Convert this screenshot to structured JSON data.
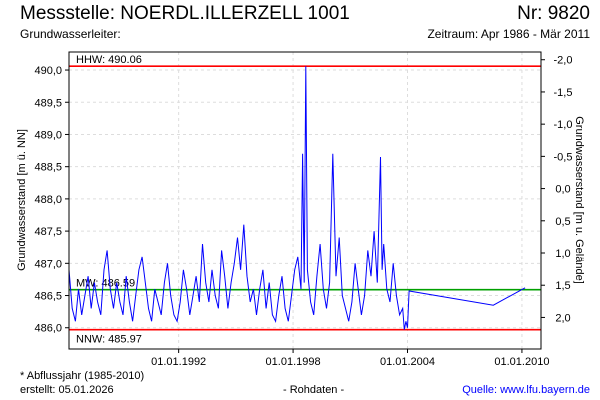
{
  "header": {
    "title": "Messstelle: NOERDL.ILLERZELL 1001",
    "nr": "Nr: 9820",
    "subtitle": "Grundwasserleiter:",
    "period": "Zeitraum: Apr 1986 - Mär 2011"
  },
  "footer": {
    "note": "* Abflussjahr (1985-2010)",
    "created": "erstellt:  05.01.2026",
    "raw": "- Rohdaten -",
    "source": "Quelle: www.lfu.bayern.de"
  },
  "chart_data": {
    "type": "line",
    "ylabel": "Grundwasserstand [m ü. NN]",
    "y2label": "Grundwasserstand [m u. Gelände]",
    "xlim": [
      "1986-04",
      "2011-01"
    ],
    "ylim": [
      485.67,
      490.28
    ],
    "yticks": [
      "486,0",
      "486,5",
      "487,0",
      "487,5",
      "488,0",
      "488,5",
      "489,0",
      "489,5",
      "490,0"
    ],
    "y2ticks": [
      "-2,0",
      "-1,5",
      "-1,0",
      "-0,5",
      "0,0",
      "0,5",
      "1,0",
      "1,5",
      "2,0"
    ],
    "xticks": [
      "01.01.1992",
      "01.01.1998",
      "01.01.2004",
      "01.01.2010"
    ],
    "grid": true,
    "colors": {
      "series": "#0000ff",
      "hhw": "#ff0000",
      "nnw": "#ff0000",
      "mw": "#00a000"
    },
    "reference_lines": [
      {
        "label": "HHW: 490.06",
        "value": 490.06,
        "color": "#ff0000"
      },
      {
        "label": "MW: 486.59",
        "value": 486.59,
        "color": "#00a000"
      },
      {
        "label": "NNW: 485.97",
        "value": 485.97,
        "color": "#ff0000"
      }
    ],
    "series": [
      {
        "points": [
          [
            "1986-04",
            486.9
          ],
          [
            "1986-06",
            486.3
          ],
          [
            "1986-08",
            486.1
          ],
          [
            "1986-10",
            486.6
          ],
          [
            "1986-12",
            486.2
          ],
          [
            "1987-02",
            486.5
          ],
          [
            "1987-04",
            486.8
          ],
          [
            "1987-06",
            486.3
          ],
          [
            "1987-08",
            486.7
          ],
          [
            "1987-10",
            486.4
          ],
          [
            "1987-12",
            486.2
          ],
          [
            "1988-02",
            486.9
          ],
          [
            "1988-04",
            487.2
          ],
          [
            "1988-06",
            486.6
          ],
          [
            "1988-08",
            486.3
          ],
          [
            "1988-10",
            486.7
          ],
          [
            "1988-12",
            486.4
          ],
          [
            "1989-02",
            486.2
          ],
          [
            "1989-04",
            486.8
          ],
          [
            "1989-06",
            486.4
          ],
          [
            "1989-08",
            486.1
          ],
          [
            "1989-10",
            486.5
          ],
          [
            "1989-12",
            486.9
          ],
          [
            "1990-02",
            487.1
          ],
          [
            "1990-04",
            486.7
          ],
          [
            "1990-06",
            486.3
          ],
          [
            "1990-08",
            486.1
          ],
          [
            "1990-10",
            486.6
          ],
          [
            "1990-12",
            486.4
          ],
          [
            "1991-02",
            486.2
          ],
          [
            "1991-04",
            486.7
          ],
          [
            "1991-06",
            487.0
          ],
          [
            "1991-08",
            486.5
          ],
          [
            "1991-10",
            486.2
          ],
          [
            "1991-12",
            486.1
          ],
          [
            "1992-02",
            486.4
          ],
          [
            "1992-04",
            486.9
          ],
          [
            "1992-06",
            486.6
          ],
          [
            "1992-08",
            486.2
          ],
          [
            "1992-10",
            486.5
          ],
          [
            "1992-12",
            486.8
          ],
          [
            "1993-02",
            486.4
          ],
          [
            "1993-04",
            487.3
          ],
          [
            "1993-06",
            486.7
          ],
          [
            "1993-08",
            486.4
          ],
          [
            "1993-10",
            486.9
          ],
          [
            "1993-12",
            486.5
          ],
          [
            "1994-02",
            486.3
          ],
          [
            "1994-04",
            487.2
          ],
          [
            "1994-06",
            486.8
          ],
          [
            "1994-08",
            486.3
          ],
          [
            "1994-10",
            486.7
          ],
          [
            "1994-12",
            487.0
          ],
          [
            "1995-02",
            487.4
          ],
          [
            "1995-04",
            486.9
          ],
          [
            "1995-06",
            487.6
          ],
          [
            "1995-08",
            486.8
          ],
          [
            "1995-10",
            486.4
          ],
          [
            "1995-12",
            486.6
          ],
          [
            "1996-02",
            486.2
          ],
          [
            "1996-04",
            486.6
          ],
          [
            "1996-06",
            486.9
          ],
          [
            "1996-08",
            486.3
          ],
          [
            "1996-10",
            486.7
          ],
          [
            "1996-12",
            486.2
          ],
          [
            "1997-02",
            486.1
          ],
          [
            "1997-04",
            486.5
          ],
          [
            "1997-06",
            486.8
          ],
          [
            "1997-08",
            486.3
          ],
          [
            "1997-10",
            486.1
          ],
          [
            "1997-12",
            486.5
          ],
          [
            "1998-02",
            486.9
          ],
          [
            "1998-04",
            487.1
          ],
          [
            "1998-06",
            486.6
          ],
          [
            "1998-07",
            488.7
          ],
          [
            "1998-08",
            486.7
          ],
          [
            "1998-09",
            490.06
          ],
          [
            "1998-10",
            486.9
          ],
          [
            "1998-12",
            486.4
          ],
          [
            "1999-02",
            486.2
          ],
          [
            "1999-04",
            486.8
          ],
          [
            "1999-06",
            487.3
          ],
          [
            "1999-08",
            486.6
          ],
          [
            "1999-10",
            486.3
          ],
          [
            "1999-12",
            486.7
          ],
          [
            "2000-02",
            488.7
          ],
          [
            "2000-04",
            486.8
          ],
          [
            "2000-06",
            487.4
          ],
          [
            "2000-08",
            486.5
          ],
          [
            "2000-10",
            486.3
          ],
          [
            "2000-12",
            486.1
          ],
          [
            "2001-02",
            486.4
          ],
          [
            "2001-04",
            487.0
          ],
          [
            "2001-06",
            486.6
          ],
          [
            "2001-08",
            486.2
          ],
          [
            "2001-10",
            486.5
          ],
          [
            "2001-12",
            487.2
          ],
          [
            "2002-02",
            486.8
          ],
          [
            "2002-04",
            487.5
          ],
          [
            "2002-06",
            486.7
          ],
          [
            "2002-08",
            488.65
          ],
          [
            "2002-09",
            486.9
          ],
          [
            "2002-10",
            487.3
          ],
          [
            "2002-12",
            486.6
          ],
          [
            "2003-02",
            486.4
          ],
          [
            "2003-04",
            487.0
          ],
          [
            "2003-06",
            486.5
          ],
          [
            "2003-08",
            486.2
          ],
          [
            "2003-10",
            486.3
          ],
          [
            "2003-11",
            485.97
          ],
          [
            "2003-12",
            486.1
          ],
          [
            "2004-01",
            486.0
          ],
          [
            "2004-02",
            486.57
          ],
          [
            "2008-07",
            486.35
          ],
          [
            "2010-03",
            486.62
          ]
        ]
      }
    ]
  }
}
